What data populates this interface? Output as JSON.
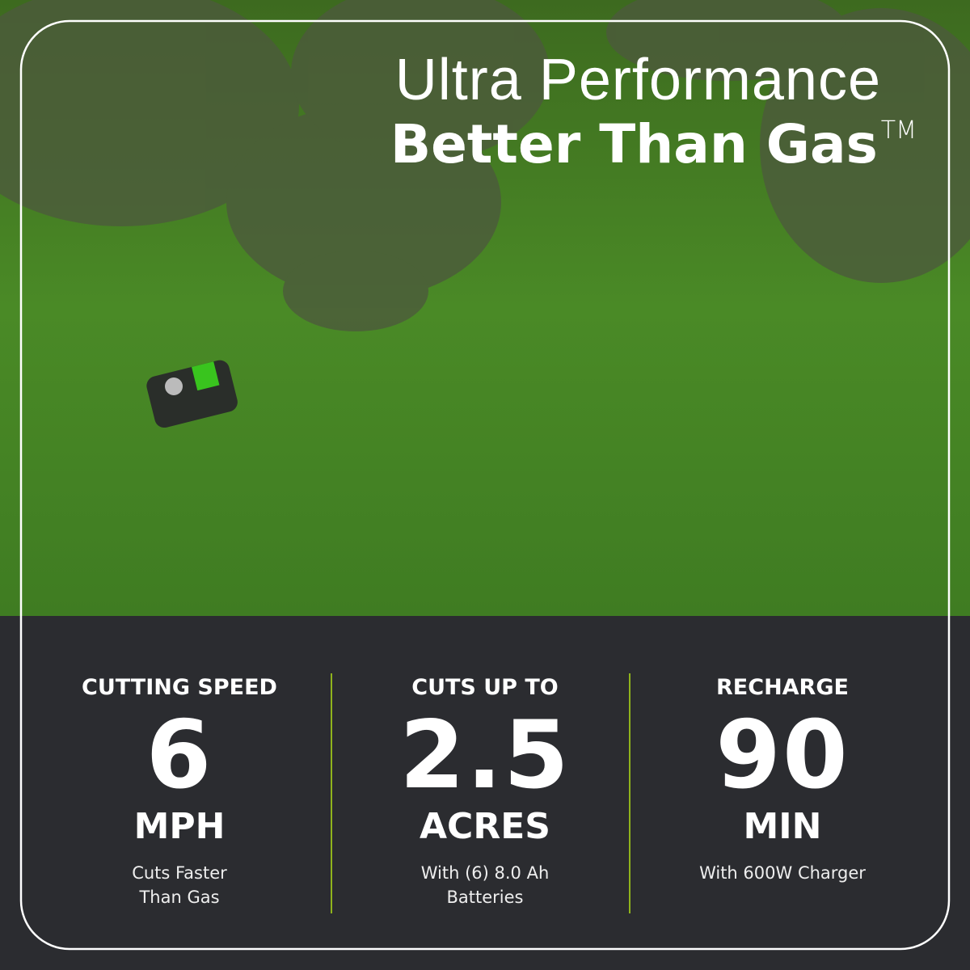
{
  "headline": {
    "line1": "Ultra Performance",
    "line2": "Better Than Gas",
    "mark": "TM"
  },
  "stats": [
    {
      "label": "CUTTING SPEED",
      "value": "6",
      "unit": "MPH",
      "note": [
        "Cuts Faster",
        "Than Gas"
      ]
    },
    {
      "label": "CUTS UP TO",
      "value": "2.5",
      "unit": "ACRES",
      "note": [
        "With (6) 8.0 Ah",
        "Batteries"
      ]
    },
    {
      "label": "RECHARGE",
      "value": "90",
      "unit": "MIN",
      "note": [
        "With 600W Charger"
      ]
    }
  ]
}
